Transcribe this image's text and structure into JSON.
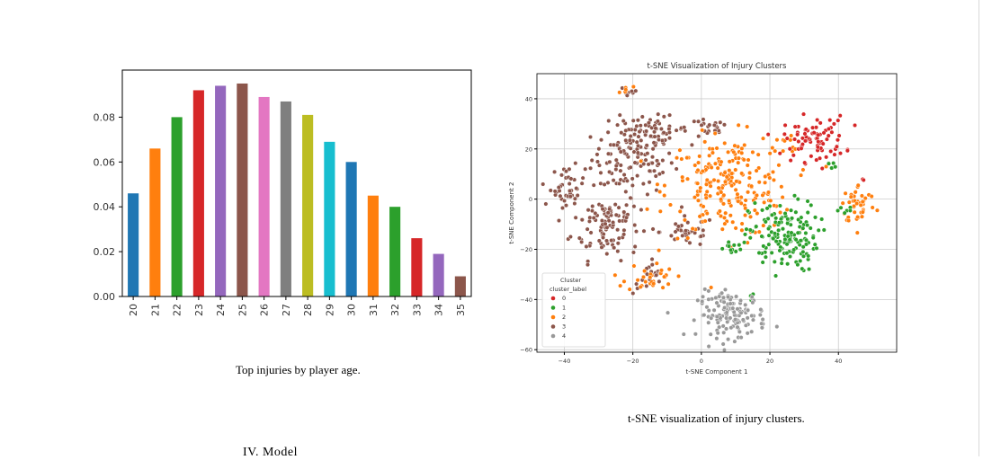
{
  "charts": [
    {
      "type": "bar",
      "categories": [
        "20",
        "21",
        "22",
        "23",
        "24",
        "25",
        "26",
        "27",
        "28",
        "29",
        "30",
        "31",
        "32",
        "33",
        "34",
        "35"
      ],
      "values": [
        0.046,
        0.066,
        0.08,
        0.092,
        0.094,
        0.095,
        0.089,
        0.087,
        0.081,
        0.069,
        0.06,
        0.045,
        0.04,
        0.026,
        0.019,
        0.009
      ],
      "colors": [
        "#1f77b4",
        "#ff7f0e",
        "#2ca02c",
        "#d62728",
        "#9467bd",
        "#8c564b",
        "#e377c2",
        "#7f7f7f",
        "#bcbd22",
        "#17becf",
        "#1f77b4",
        "#ff7f0e",
        "#2ca02c",
        "#d62728",
        "#9467bd",
        "#8c564b"
      ],
      "ylim": [
        0,
        0.101
      ],
      "yticks": [
        "0.00",
        "0.02",
        "0.04",
        "0.06",
        "0.08"
      ],
      "grid": false
    },
    {
      "type": "scatter",
      "title": "t-SNE Visualization of Injury Clusters",
      "xlabel": "t-SNE Component 1",
      "ylabel": "t-SNE Component 2",
      "xlim": [
        -48,
        57
      ],
      "ylim": [
        -61,
        50
      ],
      "xticks": [
        "−40",
        "−20",
        "0",
        "20",
        "40"
      ],
      "yticks": [
        "−60",
        "−40",
        "−20",
        "0",
        "20",
        "40"
      ],
      "grid": true,
      "legend": {
        "title": "Cluster",
        "subtitle": "cluster_label",
        "position": "lower-left",
        "labels": [
          "0",
          "1",
          "2",
          "3",
          "4"
        ]
      },
      "series": [
        {
          "label": "0",
          "color": "#d62728",
          "clusters": [
            {
              "cx": 33,
              "cy": 24,
              "sx": 4.5,
              "sy": 4.5,
              "n": 80
            },
            {
              "cx": 47,
              "cy": 7,
              "sx": 0.6,
              "sy": 0.6,
              "n": 2
            }
          ]
        },
        {
          "label": "1",
          "color": "#2ca02c",
          "clusters": [
            {
              "cx": 24,
              "cy": -15,
              "sx": 5,
              "sy": 7,
              "n": 150
            },
            {
              "cx": 10,
              "cy": -20,
              "sx": 3,
              "sy": 1.5,
              "n": 15
            },
            {
              "cx": 42,
              "cy": -5,
              "sx": 1.5,
              "sy": 1,
              "n": 6
            },
            {
              "cx": 38,
              "cy": 14,
              "sx": 1,
              "sy": 1,
              "n": 5
            },
            {
              "cx": 15,
              "cy": -40,
              "sx": 1,
              "sy": 2,
              "n": 6
            }
          ]
        },
        {
          "label": "2",
          "color": "#ff7f0e",
          "clusters": [
            {
              "cx": 8,
              "cy": 5,
              "sx": 9,
              "sy": 10,
              "n": 230
            },
            {
              "cx": 46,
              "cy": -2,
              "sx": 2.5,
              "sy": 4,
              "n": 45
            },
            {
              "cx": -15,
              "cy": -31,
              "sx": 3.5,
              "sy": 3,
              "n": 30
            },
            {
              "cx": -22,
              "cy": 44,
              "sx": 1,
              "sy": 1,
              "n": 6
            },
            {
              "cx": 26,
              "cy": 22,
              "sx": 1.5,
              "sy": 1.5,
              "n": 8
            }
          ]
        },
        {
          "label": "3",
          "color": "#8c564b",
          "clusters": [
            {
              "cx": -20,
              "cy": 16,
              "sx": 6,
              "sy": 7,
              "n": 120
            },
            {
              "cx": -28,
              "cy": -10,
              "sx": 5,
              "sy": 7,
              "n": 110
            },
            {
              "cx": -39,
              "cy": 5,
              "sx": 2.5,
              "sy": 4,
              "n": 40
            },
            {
              "cx": -14,
              "cy": 28,
              "sx": 5,
              "sy": 2.5,
              "n": 50
            },
            {
              "cx": -15,
              "cy": -32,
              "sx": 2.5,
              "sy": 3,
              "n": 20
            },
            {
              "cx": -21,
              "cy": 43,
              "sx": 1.5,
              "sy": 1.5,
              "n": 10
            },
            {
              "cx": -4,
              "cy": -13,
              "sx": 4,
              "sy": 3,
              "n": 35
            },
            {
              "cx": 2,
              "cy": 28,
              "sx": 3,
              "sy": 2,
              "n": 20
            }
          ]
        },
        {
          "label": "4",
          "color": "#999999",
          "clusters": [
            {
              "cx": 9,
              "cy": -46,
              "sx": 5,
              "sy": 4.5,
              "n": 140
            }
          ]
        }
      ]
    }
  ],
  "captions": {
    "bar": "Top injuries by player age.",
    "tsne": "t-SNE visualization of injury clusters."
  },
  "section_heading": "IV.  Model"
}
